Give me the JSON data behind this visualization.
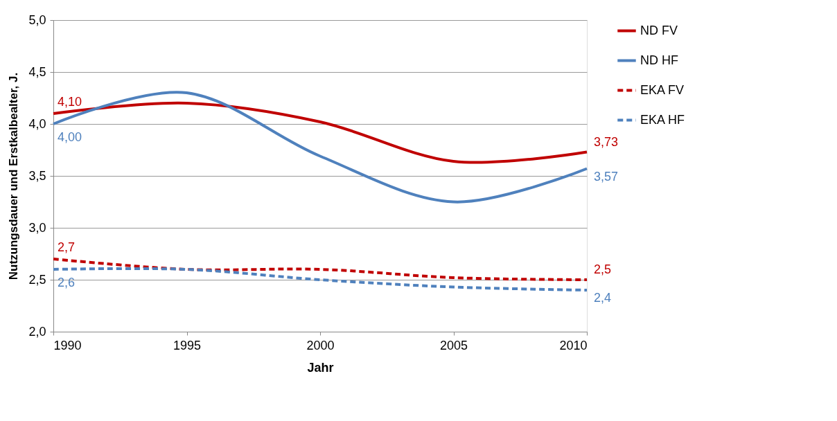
{
  "chart_data": {
    "type": "line",
    "xlabel": "Jahr",
    "ylabel": "Nutzungsdauer und Erstkalbealter, J.",
    "x": [
      1990,
      1995,
      2000,
      2005,
      2010
    ],
    "xlim": [
      1990,
      2010
    ],
    "xticks": [
      1990,
      1995,
      2000,
      2005,
      2010
    ],
    "ylim": [
      2.0,
      5.0
    ],
    "yticks": [
      {
        "value": 2.0,
        "label": "2,0"
      },
      {
        "value": 2.5,
        "label": "2,5"
      },
      {
        "value": 3.0,
        "label": "3,0"
      },
      {
        "value": 3.5,
        "label": "3,5"
      },
      {
        "value": 4.0,
        "label": "4,0"
      },
      {
        "value": 4.5,
        "label": "4,5"
      },
      {
        "value": 5.0,
        "label": "5,0"
      }
    ],
    "grid": "y",
    "legend": "right",
    "marker": "none",
    "series": [
      {
        "name": "ND FV",
        "color": "#c00000",
        "line_style": "solid",
        "values": [
          4.1,
          4.2,
          4.02,
          3.64,
          3.73
        ],
        "value_labels": [
          "4,10",
          null,
          null,
          null,
          "3,73"
        ]
      },
      {
        "name": "ND HF",
        "color": "#4f81bd",
        "line_style": "solid",
        "values": [
          4.0,
          4.3,
          3.69,
          3.25,
          3.57
        ],
        "value_labels": [
          "4,00",
          null,
          null,
          null,
          "3,57"
        ]
      },
      {
        "name": "EKA FV",
        "color": "#c00000",
        "line_style": "dashed",
        "values": [
          2.7,
          2.6,
          2.6,
          2.52,
          2.5
        ],
        "value_labels": [
          "2,7",
          null,
          null,
          null,
          "2,5"
        ]
      },
      {
        "name": "EKA HF",
        "color": "#4f81bd",
        "line_style": "dashed",
        "values": [
          2.6,
          2.6,
          2.5,
          2.43,
          2.4
        ],
        "value_labels": [
          "2,6",
          null,
          null,
          null,
          "2,4"
        ]
      }
    ]
  }
}
